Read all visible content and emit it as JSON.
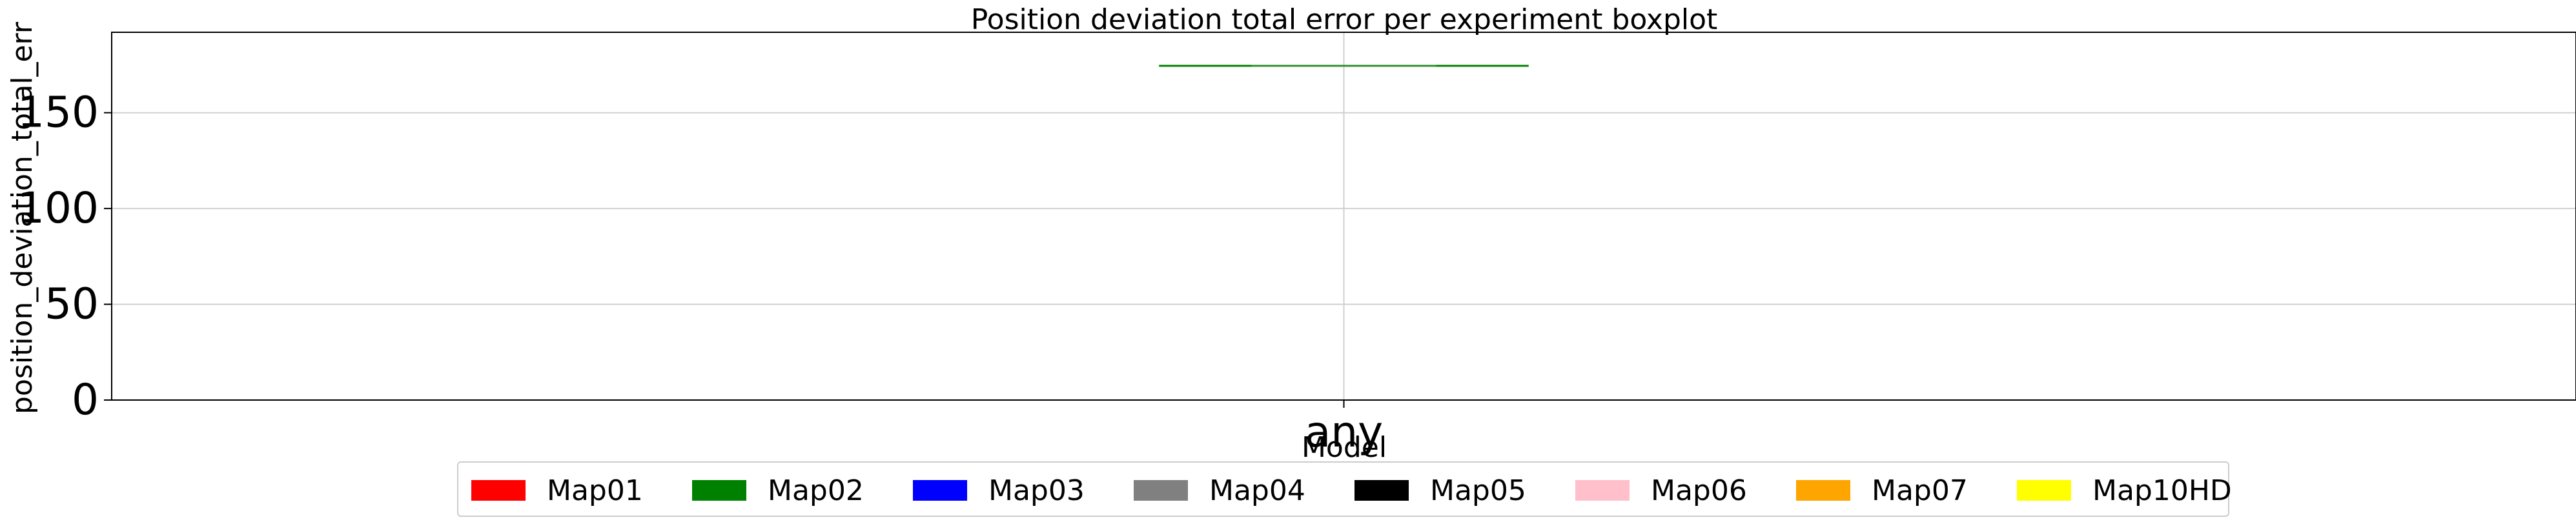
{
  "chart_data": {
    "type": "box",
    "title": "Position deviation total error per experiment boxplot",
    "xlabel": "Model",
    "ylabel": "position_deviation_total_err",
    "categories": [
      "any"
    ],
    "ylim": [
      0,
      192
    ],
    "yticks": [
      0,
      50,
      100,
      150
    ],
    "ytick_labels": [
      "0",
      "50",
      "100",
      "150"
    ],
    "grid": true,
    "legend_position": "bottom-center",
    "series": [
      {
        "name": "Map02",
        "category": "any",
        "min": 174.5,
        "q1": 174.5,
        "median": 174.5,
        "q3": 174.5,
        "max": 174.5
      }
    ],
    "legend": [
      {
        "label": "Map01",
        "color": "#ff0000"
      },
      {
        "label": "Map02",
        "color": "#008000"
      },
      {
        "label": "Map03",
        "color": "#0000ff"
      },
      {
        "label": "Map04",
        "color": "#808080"
      },
      {
        "label": "Map05",
        "color": "#000000"
      },
      {
        "label": "Map06",
        "color": "#ffc0cb"
      },
      {
        "label": "Map07",
        "color": "#ffa500"
      },
      {
        "label": "Map10HD",
        "color": "#ffff00"
      }
    ]
  }
}
